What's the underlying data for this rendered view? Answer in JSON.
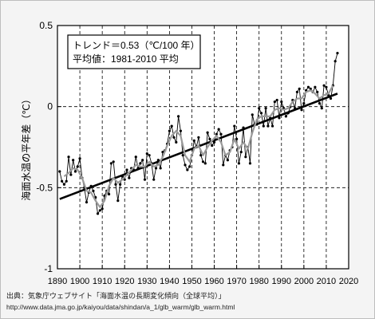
{
  "source": {
    "line1": "出典：気象庁ウェブサイト「海面水温の長期変化傾向（全球平均）」",
    "line2": "http://www.data.jma.go.jp/kaiyou/data/shindan/a_1/glb_warm/glb_warm.html"
  },
  "chart_data": {
    "type": "line",
    "ylabel": "海面水温の平年差（℃）",
    "xlabel": "",
    "xlim": [
      1890,
      2020
    ],
    "ylim": [
      -1,
      0.5
    ],
    "x_ticks": [
      1890,
      1900,
      1910,
      1920,
      1930,
      1940,
      1950,
      1960,
      1970,
      1980,
      1990,
      2000,
      2010,
      2020
    ],
    "y_ticks": [
      {
        "value": 0.5,
        "label": "0.5"
      },
      {
        "value": 0,
        "label": "0"
      },
      {
        "value": -0.5,
        "label": "-0.5"
      },
      {
        "value": -1,
        "label": "-1"
      }
    ],
    "annotation": {
      "line1": "トレンド＝0.53（℃/100 年）",
      "line2": "平均値：1981-2010 平均"
    },
    "trend": {
      "slope_per_100yr": 0.53,
      "x": [
        1891,
        2015
      ],
      "y": [
        -0.57,
        0.08
      ]
    },
    "colors": {
      "annual": "#000000",
      "smoothed": "#9a9a9a",
      "trend": "#000000",
      "grid": "#000000"
    },
    "series": [
      {
        "style": "annual",
        "x": [
          1891,
          1892,
          1893,
          1894,
          1895,
          1896,
          1897,
          1898,
          1899,
          1900,
          1901,
          1902,
          1903,
          1904,
          1905,
          1906,
          1907,
          1908,
          1909,
          1910,
          1911,
          1912,
          1913,
          1914,
          1915,
          1916,
          1917,
          1918,
          1919,
          1920,
          1921,
          1922,
          1923,
          1924,
          1925,
          1926,
          1927,
          1928,
          1929,
          1930,
          1931,
          1932,
          1933,
          1934,
          1935,
          1936,
          1937,
          1938,
          1939,
          1940,
          1941,
          1942,
          1943,
          1944,
          1945,
          1946,
          1947,
          1948,
          1949,
          1950,
          1951,
          1952,
          1953,
          1954,
          1955,
          1956,
          1957,
          1958,
          1959,
          1960,
          1961,
          1962,
          1963,
          1964,
          1965,
          1966,
          1967,
          1968,
          1969,
          1970,
          1971,
          1972,
          1973,
          1974,
          1975,
          1976,
          1977,
          1978,
          1979,
          1980,
          1981,
          1982,
          1983,
          1984,
          1985,
          1986,
          1987,
          1988,
          1989,
          1990,
          1991,
          1992,
          1993,
          1994,
          1995,
          1996,
          1997,
          1998,
          1999,
          2000,
          2001,
          2002,
          2003,
          2004,
          2005,
          2006,
          2007,
          2008,
          2009,
          2010,
          2011,
          2012,
          2013,
          2014,
          2015
        ],
        "y": [
          -0.4,
          -0.46,
          -0.48,
          -0.46,
          -0.31,
          -0.42,
          -0.33,
          -0.4,
          -0.37,
          -0.32,
          -0.44,
          -0.5,
          -0.59,
          -0.53,
          -0.49,
          -0.52,
          -0.56,
          -0.66,
          -0.64,
          -0.63,
          -0.55,
          -0.52,
          -0.54,
          -0.35,
          -0.34,
          -0.48,
          -0.58,
          -0.48,
          -0.43,
          -0.45,
          -0.39,
          -0.44,
          -0.38,
          -0.39,
          -0.31,
          -0.38,
          -0.35,
          -0.33,
          -0.45,
          -0.29,
          -0.3,
          -0.35,
          -0.45,
          -0.38,
          -0.33,
          -0.38,
          -0.28,
          -0.27,
          -0.23,
          -0.15,
          -0.12,
          -0.19,
          -0.22,
          -0.06,
          -0.15,
          -0.3,
          -0.36,
          -0.39,
          -0.37,
          -0.3,
          -0.21,
          -0.25,
          -0.19,
          -0.3,
          -0.34,
          -0.35,
          -0.16,
          -0.2,
          -0.24,
          -0.22,
          -0.17,
          -0.14,
          -0.17,
          -0.36,
          -0.3,
          -0.33,
          -0.27,
          -0.25,
          -0.12,
          -0.2,
          -0.35,
          -0.28,
          -0.13,
          -0.31,
          -0.25,
          -0.35,
          -0.05,
          -0.11,
          -0.11,
          -0.01,
          -0.04,
          -0.12,
          -0.01,
          -0.12,
          -0.07,
          -0.12,
          0.03,
          0.04,
          -0.07,
          0.03,
          -0.01,
          -0.06,
          -0.04,
          0.0,
          0.04,
          -0.01,
          0.09,
          0.11,
          -0.02,
          0.02,
          0.1,
          0.12,
          0.11,
          0.09,
          0.12,
          0.09,
          0.02,
          -0.01,
          0.13,
          0.12,
          0.07,
          0.05,
          0.13,
          0.28,
          0.33
        ]
      },
      {
        "style": "smoothed",
        "x": [
          1893,
          1895,
          1897,
          1899,
          1901,
          1903,
          1905,
          1907,
          1909,
          1911,
          1913,
          1915,
          1917,
          1919,
          1921,
          1923,
          1925,
          1927,
          1929,
          1931,
          1933,
          1935,
          1937,
          1939,
          1941,
          1943,
          1945,
          1947,
          1949,
          1951,
          1953,
          1955,
          1957,
          1959,
          1961,
          1963,
          1965,
          1967,
          1969,
          1971,
          1973,
          1975,
          1977,
          1979,
          1981,
          1983,
          1985,
          1987,
          1989,
          1991,
          1993,
          1995,
          1997,
          1999,
          2001,
          2003,
          2005,
          2007,
          2009,
          2011,
          2013
        ],
        "y": [
          -0.43,
          -0.41,
          -0.38,
          -0.39,
          -0.44,
          -0.52,
          -0.53,
          -0.58,
          -0.62,
          -0.58,
          -0.49,
          -0.44,
          -0.47,
          -0.45,
          -0.42,
          -0.39,
          -0.36,
          -0.37,
          -0.37,
          -0.34,
          -0.37,
          -0.36,
          -0.31,
          -0.24,
          -0.18,
          -0.15,
          -0.18,
          -0.3,
          -0.34,
          -0.26,
          -0.24,
          -0.3,
          -0.25,
          -0.21,
          -0.18,
          -0.22,
          -0.3,
          -0.28,
          -0.2,
          -0.26,
          -0.22,
          -0.26,
          -0.16,
          -0.08,
          -0.06,
          -0.06,
          -0.06,
          -0.02,
          -0.01,
          -0.02,
          -0.01,
          0.03,
          0.05,
          0.05,
          0.09,
          0.1,
          0.08,
          0.05,
          0.07,
          0.08,
          0.13
        ]
      }
    ]
  }
}
